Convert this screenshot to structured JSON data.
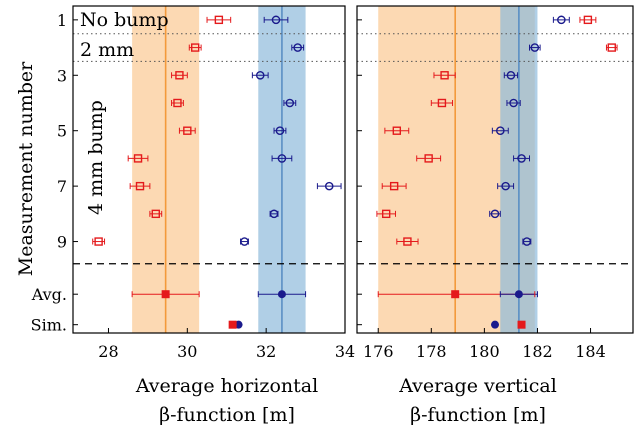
{
  "chart_data": [
    {
      "type": "scatter",
      "xlabel_lines": [
        "Average horizontal",
        "β-function [m]"
      ],
      "ylabel": "Measurement number",
      "xlim": [
        27.1,
        34.0
      ],
      "xticks": [
        28,
        30,
        32,
        34
      ],
      "ylim": [
        0.5,
        12.3
      ],
      "y_ticks": [
        {
          "pos": 1,
          "label": "1"
        },
        {
          "pos": 3,
          "label": "3"
        },
        {
          "pos": 5,
          "label": "5"
        },
        {
          "pos": 7,
          "label": "7"
        },
        {
          "pos": 9,
          "label": "9"
        },
        {
          "pos": 10.9,
          "label": "Avg."
        },
        {
          "pos": 12,
          "label": "Sim."
        }
      ],
      "measured": {
        "marker": "square",
        "color": "#e41a1c",
        "points": [
          {
            "y": 1,
            "x": 30.8,
            "err": 0.3
          },
          {
            "y": 2,
            "x": 30.2,
            "err": 0.15
          },
          {
            "y": 3,
            "x": 29.8,
            "err": 0.2
          },
          {
            "y": 4,
            "x": 29.75,
            "err": 0.15
          },
          {
            "y": 5,
            "x": 30.0,
            "err": 0.2
          },
          {
            "y": 6,
            "x": 28.75,
            "err": 0.25
          },
          {
            "y": 7,
            "x": 28.8,
            "err": 0.25
          },
          {
            "y": 8,
            "x": 29.2,
            "err": 0.15
          },
          {
            "y": 9,
            "x": 27.75,
            "err": 0.15
          }
        ]
      },
      "model": {
        "marker": "circle",
        "color": "#1a1a8c",
        "points": [
          {
            "y": 1,
            "x": 32.25,
            "err": 0.3
          },
          {
            "y": 2,
            "x": 32.8,
            "err": 0.15
          },
          {
            "y": 3,
            "x": 31.85,
            "err": 0.2
          },
          {
            "y": 4,
            "x": 32.6,
            "err": 0.15
          },
          {
            "y": 5,
            "x": 32.35,
            "err": 0.15
          },
          {
            "y": 6,
            "x": 32.4,
            "err": 0.25
          },
          {
            "y": 7,
            "x": 33.6,
            "err": 0.3
          },
          {
            "y": 8,
            "x": 32.2,
            "err": 0.1
          },
          {
            "y": 9,
            "x": 31.45,
            "err": 0.1
          }
        ]
      },
      "average": {
        "measured": 29.45,
        "measured_band": [
          28.6,
          30.3
        ],
        "model": 32.4,
        "model_band": [
          31.8,
          33.0
        ]
      },
      "simulation": {
        "measured": 31.15,
        "model": 31.3
      },
      "annotations": [
        "No bump",
        "2 mm",
        "4 mm bump"
      ]
    },
    {
      "type": "scatter",
      "xlabel_lines": [
        "Average vertical",
        "β-function [m]"
      ],
      "xlim": [
        175.2,
        185.6
      ],
      "xticks": [
        176,
        178,
        180,
        182,
        184
      ],
      "ylim": [
        0.5,
        12.3
      ],
      "measured": {
        "marker": "square",
        "color": "#e41a1c",
        "points": [
          {
            "y": 1,
            "x": 183.9,
            "err": 0.3
          },
          {
            "y": 2,
            "x": 184.8,
            "err": 0.2
          },
          {
            "y": 3,
            "x": 178.5,
            "err": 0.4
          },
          {
            "y": 4,
            "x": 178.4,
            "err": 0.4
          },
          {
            "y": 5,
            "x": 176.7,
            "err": 0.45
          },
          {
            "y": 6,
            "x": 177.9,
            "err": 0.45
          },
          {
            "y": 7,
            "x": 176.6,
            "err": 0.45
          },
          {
            "y": 8,
            "x": 176.3,
            "err": 0.35
          },
          {
            "y": 9,
            "x": 177.1,
            "err": 0.4
          }
        ]
      },
      "model": {
        "marker": "circle",
        "color": "#1a1a8c",
        "points": [
          {
            "y": 1,
            "x": 182.9,
            "err": 0.3
          },
          {
            "y": 2,
            "x": 181.9,
            "err": 0.2
          },
          {
            "y": 3,
            "x": 181.0,
            "err": 0.25
          },
          {
            "y": 4,
            "x": 181.1,
            "err": 0.25
          },
          {
            "y": 5,
            "x": 180.6,
            "err": 0.3
          },
          {
            "y": 6,
            "x": 181.4,
            "err": 0.3
          },
          {
            "y": 7,
            "x": 180.8,
            "err": 0.3
          },
          {
            "y": 8,
            "x": 180.4,
            "err": 0.2
          },
          {
            "y": 9,
            "x": 181.6,
            "err": 0.15
          }
        ]
      },
      "average": {
        "measured": 178.9,
        "measured_band": [
          176.0,
          181.9
        ],
        "model": 181.3,
        "model_band": [
          180.6,
          182.0
        ]
      },
      "simulation": {
        "measured": 181.4,
        "model": 180.4
      }
    }
  ]
}
